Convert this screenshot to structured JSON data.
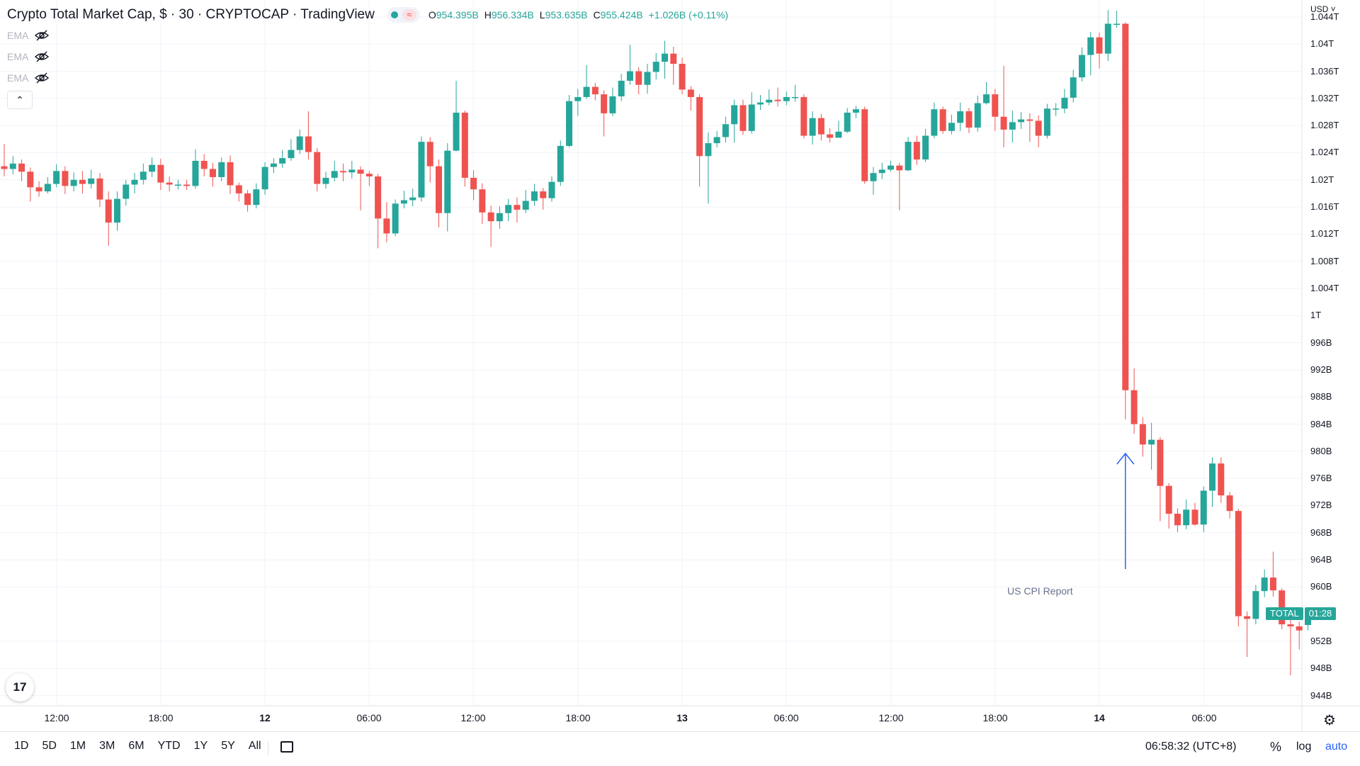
{
  "header": {
    "title": "Crypto Total Market Cap, $ · 30 · CRYPTOCAP · TradingView",
    "ohlc": {
      "o_label": "O",
      "o": "954.395B",
      "h_label": "H",
      "h": "956.334B",
      "l_label": "L",
      "l": "953.635B",
      "c_label": "C",
      "c": "955.424B",
      "change": "+1.026B (+0.11%)"
    },
    "up_color": "#26a69a",
    "down_color": "#ef5350"
  },
  "indicators": [
    "EMA",
    "EMA",
    "EMA"
  ],
  "price_axis": {
    "currency": "USD",
    "ticks": [
      "1.044T",
      "1.04T",
      "1.036T",
      "1.032T",
      "1.028T",
      "1.024T",
      "1.02T",
      "1.016T",
      "1.012T",
      "1.008T",
      "1.004T",
      "1T",
      "996B",
      "992B",
      "988B",
      "984B",
      "980B",
      "976B",
      "972B",
      "968B",
      "964B",
      "960B",
      "952B",
      "948B",
      "944B"
    ]
  },
  "time_axis": {
    "ticks": [
      {
        "label": "12:00",
        "bold": false
      },
      {
        "label": "18:00",
        "bold": false
      },
      {
        "label": "12",
        "bold": true
      },
      {
        "label": "06:00",
        "bold": false
      },
      {
        "label": "12:00",
        "bold": false
      },
      {
        "label": "18:00",
        "bold": false
      },
      {
        "label": "13",
        "bold": true
      },
      {
        "label": "06:00",
        "bold": false
      },
      {
        "label": "12:00",
        "bold": false
      },
      {
        "label": "18:00",
        "bold": false
      },
      {
        "label": "14",
        "bold": true
      },
      {
        "label": "06:00",
        "bold": false
      }
    ]
  },
  "price_tag": {
    "symbol": "TOTAL",
    "countdown": "01:28"
  },
  "annotation": {
    "text": "US CPI Report",
    "color": "#2962ff"
  },
  "bottom": {
    "ranges": [
      "1D",
      "5D",
      "1M",
      "3M",
      "6M",
      "YTD",
      "1Y",
      "5Y",
      "All"
    ],
    "clock": "06:58:32 (UTC+8)",
    "percent": "%",
    "log": "log",
    "auto": "auto"
  },
  "chart_data": {
    "type": "candlestick",
    "title": "Crypto Total Market Cap, $ · 30 · CRYPTOCAP · TradingView",
    "interval": "30",
    "unit": "USD billions",
    "ylim": [
      942.5,
      1046.5
    ],
    "y_ticks": [
      1044,
      1040,
      1036,
      1032,
      1028,
      1024,
      1020,
      1016,
      1012,
      1008,
      1004,
      1000,
      996,
      992,
      988,
      984,
      980,
      976,
      972,
      968,
      964,
      960,
      952,
      948,
      944
    ],
    "candles": [
      [
        1022.0,
        1021.6,
        1025.3,
        1020.5
      ],
      [
        1021.6,
        1022.4,
        1023.5,
        1020.8
      ],
      [
        1022.4,
        1021.2,
        1023.0,
        1019.8
      ],
      [
        1021.2,
        1018.9,
        1021.8,
        1016.8
      ],
      [
        1018.9,
        1018.3,
        1019.8,
        1017.5
      ],
      [
        1018.3,
        1019.4,
        1020.4,
        1018.0
      ],
      [
        1019.4,
        1021.3,
        1022.3,
        1018.9
      ],
      [
        1021.3,
        1019.1,
        1022.0,
        1017.9
      ],
      [
        1019.1,
        1020.0,
        1021.1,
        1018.3
      ],
      [
        1020.0,
        1019.4,
        1021.3,
        1018.0
      ],
      [
        1019.4,
        1020.2,
        1021.5,
        1018.7
      ],
      [
        1020.2,
        1017.1,
        1021.0,
        1016.0
      ],
      [
        1017.1,
        1013.7,
        1018.3,
        1010.3
      ],
      [
        1013.7,
        1017.2,
        1018.3,
        1012.5
      ],
      [
        1017.2,
        1019.3,
        1020.0,
        1016.2
      ],
      [
        1019.3,
        1020.0,
        1021.0,
        1018.0
      ],
      [
        1020.0,
        1021.2,
        1022.4,
        1019.3
      ],
      [
        1021.2,
        1022.2,
        1023.3,
        1020.4
      ],
      [
        1022.2,
        1019.6,
        1023.1,
        1018.5
      ],
      [
        1019.6,
        1019.3,
        1020.5,
        1018.3
      ],
      [
        1019.3,
        1019.3,
        1020.0,
        1018.6
      ],
      [
        1019.3,
        1019.1,
        1020.0,
        1018.5
      ],
      [
        1019.1,
        1022.8,
        1024.5,
        1018.7
      ],
      [
        1022.8,
        1021.6,
        1023.8,
        1020.5
      ],
      [
        1021.6,
        1020.4,
        1022.5,
        1019.0
      ],
      [
        1020.4,
        1022.6,
        1023.3,
        1019.8
      ],
      [
        1022.6,
        1019.2,
        1023.6,
        1017.9
      ],
      [
        1019.2,
        1018.0,
        1019.6,
        1016.8
      ],
      [
        1018.0,
        1016.3,
        1018.5,
        1015.3
      ],
      [
        1016.3,
        1018.6,
        1019.5,
        1015.8
      ],
      [
        1018.6,
        1021.9,
        1022.6,
        1017.8
      ],
      [
        1021.9,
        1022.4,
        1023.2,
        1021.0
      ],
      [
        1022.4,
        1023.2,
        1024.4,
        1021.8
      ],
      [
        1023.2,
        1024.4,
        1026.0,
        1022.8
      ],
      [
        1024.4,
        1026.4,
        1027.4,
        1023.8
      ],
      [
        1026.4,
        1024.1,
        1030.1,
        1023.0
      ],
      [
        1024.1,
        1019.4,
        1024.7,
        1018.3
      ],
      [
        1019.4,
        1020.3,
        1021.2,
        1018.7
      ],
      [
        1020.3,
        1021.3,
        1022.8,
        1019.8
      ],
      [
        1021.3,
        1021.1,
        1022.4,
        1019.8
      ],
      [
        1021.1,
        1021.5,
        1022.8,
        1020.2
      ],
      [
        1021.5,
        1020.9,
        1022.0,
        1015.5
      ],
      [
        1020.9,
        1020.5,
        1021.3,
        1019.1
      ],
      [
        1020.5,
        1014.3,
        1020.9,
        1009.9
      ],
      [
        1014.3,
        1012.1,
        1016.7,
        1010.8
      ],
      [
        1012.1,
        1016.5,
        1017.1,
        1011.7
      ],
      [
        1016.5,
        1017.0,
        1018.4,
        1015.8
      ],
      [
        1017.0,
        1017.4,
        1018.7,
        1016.1
      ],
      [
        1017.4,
        1025.6,
        1026.4,
        1016.8
      ],
      [
        1025.6,
        1022.0,
        1026.3,
        1019.6
      ],
      [
        1022.0,
        1015.1,
        1023.0,
        1013.0
      ],
      [
        1015.1,
        1024.3,
        1025.4,
        1012.4
      ],
      [
        1024.3,
        1029.9,
        1034.6,
        1024.2
      ],
      [
        1029.9,
        1020.3,
        1030.2,
        1019.0
      ],
      [
        1020.3,
        1018.6,
        1021.4,
        1017.0
      ],
      [
        1018.6,
        1015.2,
        1019.5,
        1013.5
      ],
      [
        1015.2,
        1013.9,
        1016.2,
        1010.1
      ],
      [
        1013.9,
        1015.1,
        1016.1,
        1012.8
      ],
      [
        1015.1,
        1016.3,
        1017.2,
        1013.9
      ],
      [
        1016.3,
        1015.6,
        1017.4,
        1013.7
      ],
      [
        1015.6,
        1016.9,
        1018.5,
        1015.1
      ],
      [
        1016.9,
        1018.3,
        1019.4,
        1016.2
      ],
      [
        1018.3,
        1017.3,
        1018.8,
        1015.6
      ],
      [
        1017.3,
        1019.7,
        1020.5,
        1016.8
      ],
      [
        1019.7,
        1025.0,
        1025.8,
        1019.1
      ],
      [
        1025.0,
        1031.6,
        1032.5,
        1024.8
      ],
      [
        1031.6,
        1032.2,
        1033.4,
        1029.4
      ],
      [
        1032.2,
        1033.7,
        1036.9,
        1031.9
      ],
      [
        1033.7,
        1032.6,
        1034.3,
        1031.7
      ],
      [
        1032.6,
        1029.8,
        1033.2,
        1026.4
      ],
      [
        1029.8,
        1032.3,
        1033.6,
        1029.4
      ],
      [
        1032.3,
        1034.6,
        1035.6,
        1031.6
      ],
      [
        1034.6,
        1036.0,
        1039.9,
        1034.0
      ],
      [
        1036.0,
        1034.0,
        1036.6,
        1032.6
      ],
      [
        1034.0,
        1035.9,
        1037.1,
        1032.7
      ],
      [
        1035.9,
        1037.4,
        1038.7,
        1034.8
      ],
      [
        1037.4,
        1038.6,
        1040.5,
        1034.9
      ],
      [
        1038.6,
        1037.1,
        1039.6,
        1034.0
      ],
      [
        1037.1,
        1033.3,
        1038.0,
        1032.6
      ],
      [
        1033.3,
        1032.2,
        1033.8,
        1030.2
      ],
      [
        1032.2,
        1023.5,
        1032.6,
        1019.0
      ],
      [
        1023.5,
        1025.4,
        1027.0,
        1016.5
      ],
      [
        1025.4,
        1026.3,
        1027.2,
        1024.8
      ],
      [
        1026.3,
        1028.2,
        1029.3,
        1025.5
      ],
      [
        1028.2,
        1031.0,
        1031.8,
        1025.5
      ],
      [
        1031.0,
        1027.2,
        1031.8,
        1026.6
      ],
      [
        1027.2,
        1031.1,
        1032.9,
        1026.8
      ],
      [
        1031.1,
        1031.4,
        1032.5,
        1030.3
      ],
      [
        1031.4,
        1031.8,
        1033.3,
        1031.0
      ],
      [
        1031.8,
        1031.6,
        1033.6,
        1030.8
      ],
      [
        1031.6,
        1032.2,
        1033.0,
        1031.0
      ],
      [
        1032.2,
        1032.2,
        1034.0,
        1031.5
      ],
      [
        1032.2,
        1026.5,
        1032.6,
        1026.1
      ],
      [
        1026.5,
        1029.1,
        1030.1,
        1025.2
      ],
      [
        1029.1,
        1026.7,
        1029.7,
        1025.8
      ],
      [
        1026.7,
        1026.2,
        1027.6,
        1025.5
      ],
      [
        1026.2,
        1027.1,
        1028.7,
        1026.5
      ],
      [
        1027.1,
        1029.9,
        1030.6,
        1026.9
      ],
      [
        1029.9,
        1030.4,
        1030.9,
        1029.1
      ],
      [
        1030.4,
        1019.8,
        1030.8,
        1019.4
      ],
      [
        1019.8,
        1021.0,
        1021.9,
        1017.8
      ],
      [
        1021.0,
        1021.5,
        1022.5,
        1020.1
      ],
      [
        1021.5,
        1022.1,
        1022.8,
        1021.2
      ],
      [
        1022.1,
        1021.4,
        1022.5,
        1015.5
      ],
      [
        1021.4,
        1025.6,
        1026.3,
        1021.3
      ],
      [
        1025.6,
        1023.0,
        1026.5,
        1022.2
      ],
      [
        1023.0,
        1026.5,
        1027.5,
        1022.6
      ],
      [
        1026.5,
        1030.4,
        1031.4,
        1026.1
      ],
      [
        1030.4,
        1027.2,
        1030.8,
        1026.8
      ],
      [
        1027.2,
        1028.4,
        1029.6,
        1026.7
      ],
      [
        1028.4,
        1030.1,
        1031.4,
        1027.2
      ],
      [
        1030.1,
        1027.7,
        1030.6,
        1026.9
      ],
      [
        1027.7,
        1031.3,
        1032.4,
        1027.1
      ],
      [
        1031.3,
        1032.6,
        1034.4,
        1031.1
      ],
      [
        1032.6,
        1029.3,
        1033.4,
        1027.2
      ],
      [
        1029.3,
        1027.4,
        1036.8,
        1024.8
      ],
      [
        1027.4,
        1028.5,
        1030.2,
        1025.5
      ],
      [
        1028.5,
        1028.9,
        1030.0,
        1027.5
      ],
      [
        1028.9,
        1028.7,
        1029.8,
        1025.6
      ],
      [
        1028.7,
        1026.5,
        1029.5,
        1024.8
      ],
      [
        1026.5,
        1030.5,
        1031.2,
        1026.1
      ],
      [
        1030.5,
        1030.5,
        1031.3,
        1029.4
      ],
      [
        1030.5,
        1032.1,
        1033.4,
        1029.8
      ],
      [
        1032.1,
        1035.1,
        1036.2,
        1031.4
      ],
      [
        1035.1,
        1038.4,
        1039.5,
        1034.5
      ],
      [
        1038.4,
        1041.0,
        1041.8,
        1035.4
      ],
      [
        1041.0,
        1038.6,
        1041.7,
        1036.4
      ],
      [
        1038.6,
        1043.0,
        1045.0,
        1037.5
      ],
      [
        1043.0,
        1043.0,
        1044.9,
        1042.4
      ],
      [
        1043.0,
        989.0,
        1043.2,
        984.7
      ],
      [
        989.0,
        984.0,
        992.2,
        982.6
      ],
      [
        984.0,
        981.0,
        985.0,
        979.2
      ],
      [
        981.0,
        981.7,
        984.2,
        977.3
      ],
      [
        981.7,
        974.9,
        982.1,
        969.7
      ],
      [
        974.9,
        970.8,
        975.3,
        968.6
      ],
      [
        970.8,
        969.1,
        971.6,
        968.1
      ],
      [
        969.1,
        971.4,
        972.9,
        968.5
      ],
      [
        971.4,
        969.2,
        972.4,
        969.0
      ],
      [
        969.2,
        974.2,
        974.8,
        968.1
      ],
      [
        974.2,
        978.2,
        979.1,
        971.8
      ],
      [
        978.2,
        973.5,
        979.1,
        972.4
      ],
      [
        973.5,
        971.2,
        974.0,
        970.1
      ],
      [
        971.2,
        955.7,
        971.5,
        954.2
      ],
      [
        955.7,
        955.3,
        956.4,
        949.7
      ],
      [
        955.3,
        959.4,
        960.3,
        954.5
      ],
      [
        959.4,
        961.4,
        962.6,
        958.5
      ],
      [
        961.4,
        959.5,
        965.2,
        958.6
      ],
      [
        959.5,
        954.5,
        959.8,
        953.8
      ],
      [
        954.5,
        954.2,
        955.6,
        947.0
      ],
      [
        954.2,
        953.6,
        954.9,
        950.8
      ],
      [
        954.4,
        955.4,
        956.3,
        953.6
      ]
    ],
    "annotations": [
      {
        "text": "US CPI Report",
        "type": "arrow"
      }
    ]
  }
}
